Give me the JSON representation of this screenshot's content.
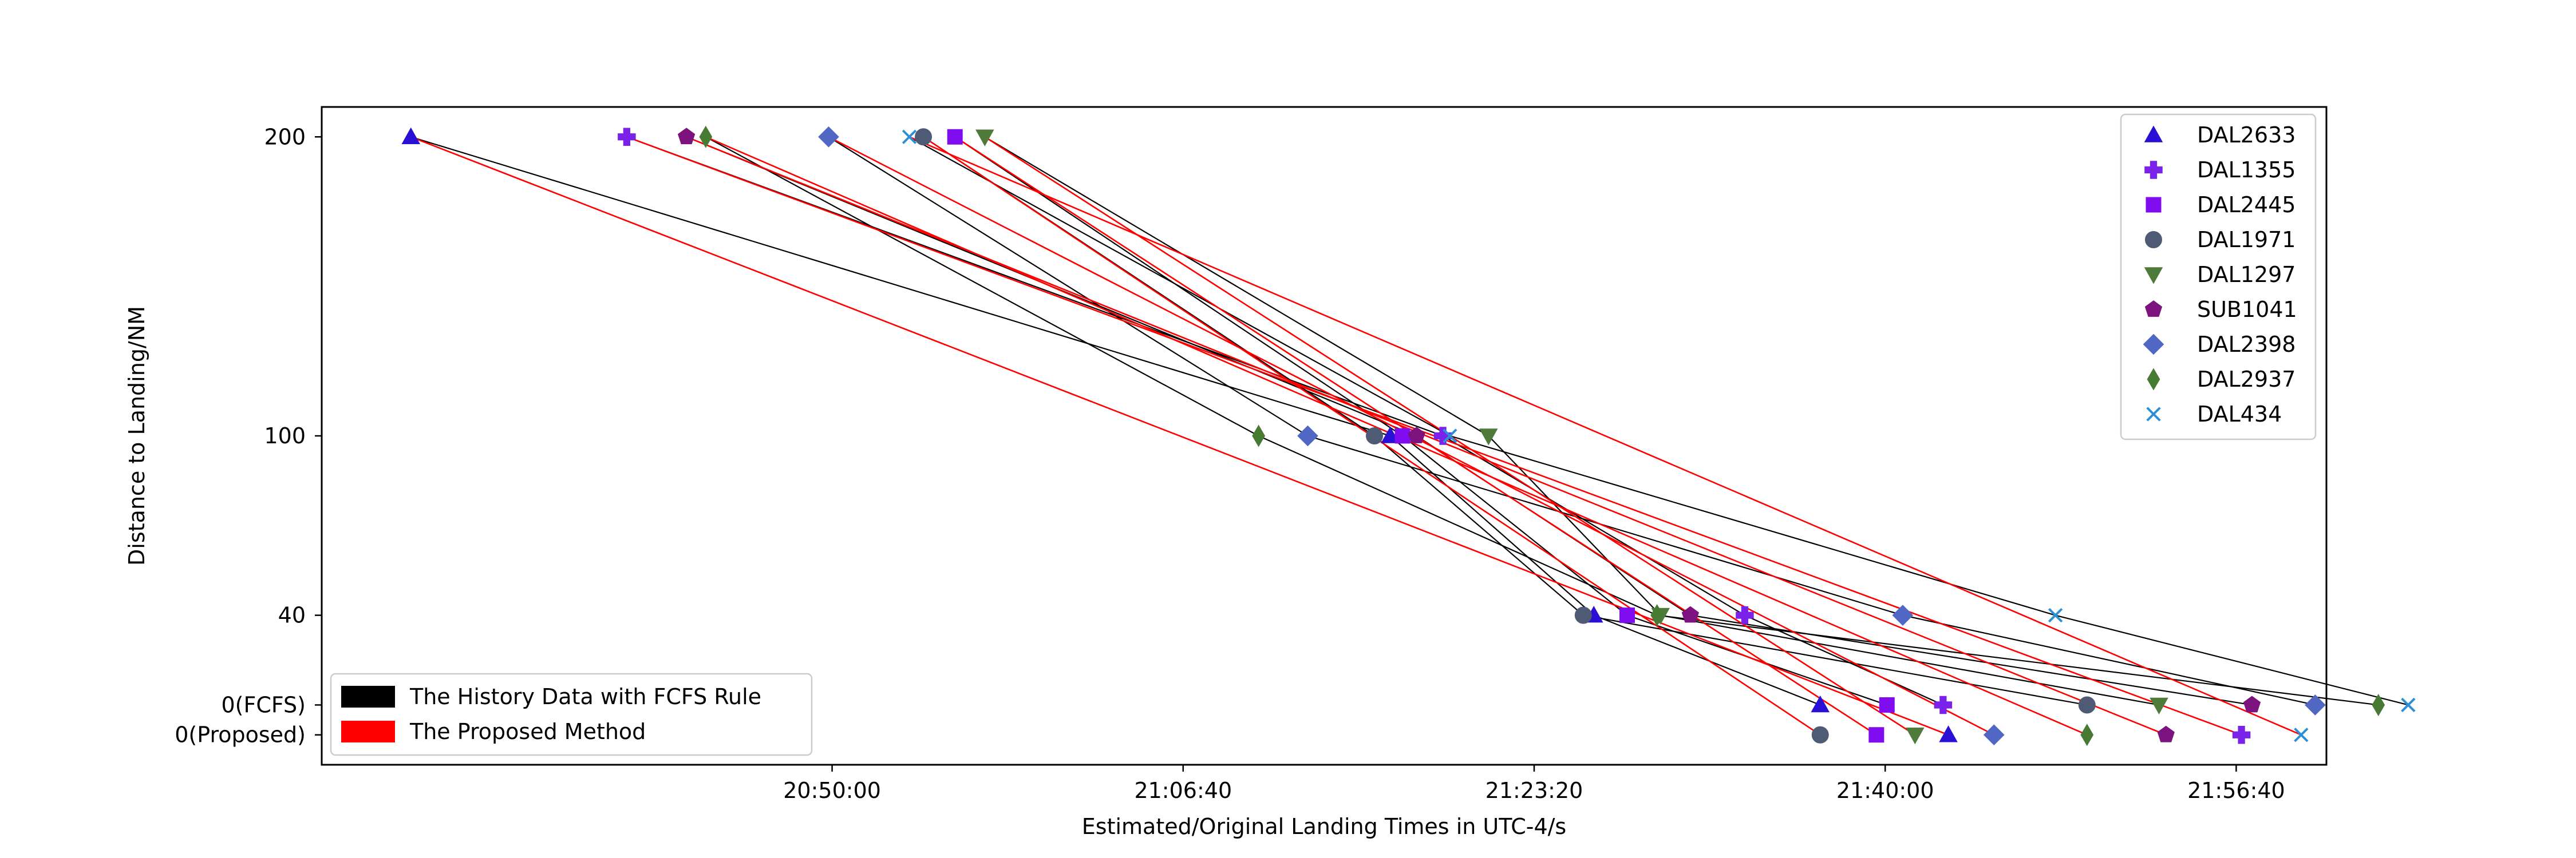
{
  "chart_data": {
    "type": "scatter",
    "title": "",
    "xlabel": "Estimated/Original Landing Times in UTC-4/s",
    "ylabel": "Distance to Landing/NM",
    "x_ticks": [
      "20:50:00",
      "21:06:40",
      "21:23:20",
      "21:40:00",
      "21:56:40"
    ],
    "x_tick_seconds": [
      75000,
      76000,
      77000,
      78000,
      79000
    ],
    "xlim_seconds": [
      73546,
      79257
    ],
    "y_ticks": [
      "200",
      "100",
      "40",
      "0(FCFS)",
      "0(Proposed)"
    ],
    "y_levels": [
      200,
      100,
      40,
      10,
      0
    ],
    "ylim": [
      -10,
      210
    ],
    "series": [
      {
        "name": "DAL2633",
        "marker": "triangle-up",
        "color": "#2a0fd4",
        "x": [
          73800,
          76590,
          77170,
          77815,
          78180
        ],
        "y": [
          200,
          100,
          40,
          10,
          0
        ]
      },
      {
        "name": "DAL1355",
        "marker": "plus",
        "color": "#7b22ea",
        "x": [
          74415,
          76740,
          77600,
          78165,
          79015
        ],
        "y": [
          200,
          100,
          40,
          10,
          0
        ]
      },
      {
        "name": "DAL2445",
        "marker": "square",
        "color": "#7f0df0",
        "x": [
          75350,
          76625,
          77265,
          78005,
          77975
        ],
        "y": [
          200,
          100,
          40,
          10,
          0
        ]
      },
      {
        "name": "DAL1971",
        "marker": "circle",
        "color": "#4f5a75",
        "x": [
          75260,
          76545,
          77140,
          78575,
          77815
        ],
        "y": [
          200,
          100,
          40,
          10,
          0
        ]
      },
      {
        "name": "DAL1297",
        "marker": "triangle-down",
        "color": "#4e7a3a",
        "x": [
          75435,
          76870,
          77360,
          78780,
          78085
        ],
        "y": [
          200,
          100,
          40,
          10,
          0
        ]
      },
      {
        "name": "SUB1041",
        "marker": "pentagon",
        "color": "#7c137e",
        "x": [
          74585,
          76665,
          77445,
          79045,
          78800
        ],
        "y": [
          200,
          100,
          40,
          10,
          0
        ]
      },
      {
        "name": "DAL2398",
        "marker": "diamond",
        "color": "#5068c4",
        "x": [
          74990,
          76355,
          78050,
          79225,
          78310
        ],
        "y": [
          200,
          100,
          40,
          10,
          0
        ]
      },
      {
        "name": "DAL2937",
        "marker": "thin-diamond",
        "color": "#477a33",
        "x": [
          74640,
          76215,
          77350,
          79405,
          78575
        ],
        "y": [
          200,
          100,
          40,
          10,
          0
        ]
      },
      {
        "name": "DAL434",
        "marker": "x",
        "color": "#2a8fd6",
        "x": [
          75220,
          76760,
          78485,
          79490,
          79185
        ],
        "y": [
          200,
          100,
          40,
          10,
          0
        ]
      }
    ],
    "legend_entries": [
      "DAL2633",
      "DAL1355",
      "DAL2445",
      "DAL1971",
      "DAL1297",
      "SUB1041",
      "DAL2398",
      "DAL2937",
      "DAL434"
    ],
    "legend_position": "top-right",
    "method_legend": [
      {
        "label": "The History Data with FCFS Rule",
        "color": "#000000"
      },
      {
        "label": "The Proposed Method",
        "color": "#ff0000"
      }
    ],
    "method_legend_position": "bottom-left",
    "grid": false
  }
}
